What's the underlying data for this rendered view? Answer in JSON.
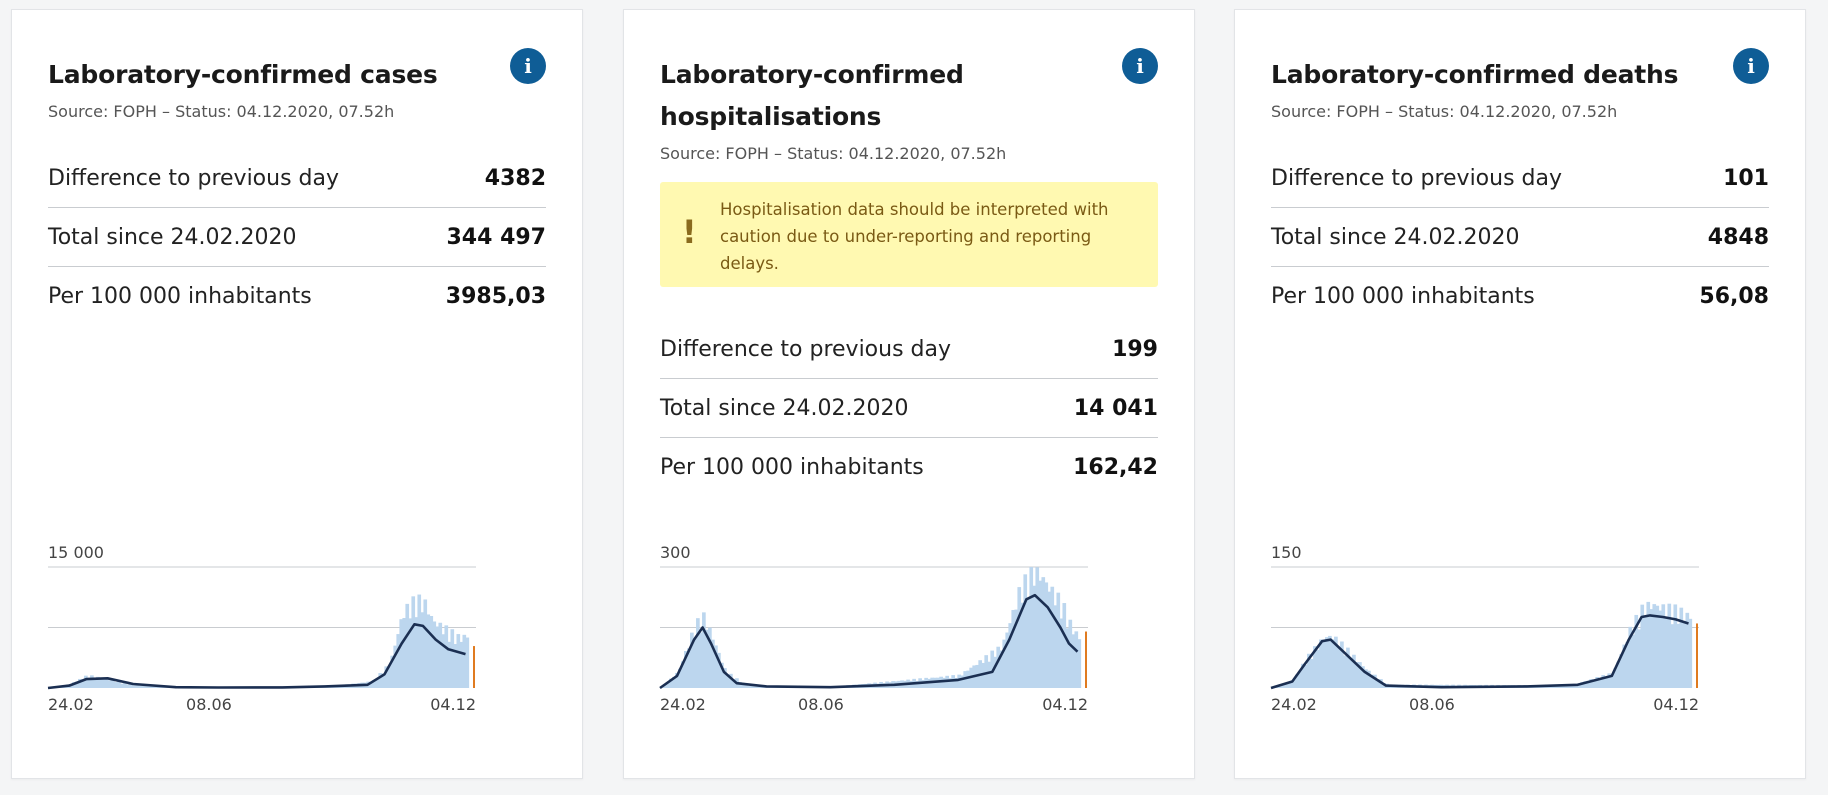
{
  "colors": {
    "info": "#0f5d96",
    "area": "#bcd6ee",
    "line": "#1b2f52",
    "recent": "#e07b20",
    "grid": "#c9ccd0",
    "warning_bg": "#fff9b1"
  },
  "cards": [
    {
      "title": "Laboratory-confirmed cases",
      "info_icon": "i",
      "source": "Source: FOPH – Status: 04.12.2020, 07.52h",
      "rows": [
        {
          "label": "Difference to previous day",
          "value": "4382"
        },
        {
          "label": "Total since 24.02.2020",
          "value": "344 497"
        },
        {
          "label": "Per 100 000 inhabitants",
          "value": "3985,03"
        }
      ]
    },
    {
      "title": "Laboratory-confirmed hospitalisations",
      "info_icon": "i",
      "source": "Source: FOPH – Status: 04.12.2020, 07.52h",
      "warning": {
        "icon": "!",
        "text": "Hospitalisation data should be interpreted with caution due to under-reporting and reporting delays."
      },
      "rows": [
        {
          "label": "Difference to previous day",
          "value": "199"
        },
        {
          "label": "Total since 24.02.2020",
          "value": "14 041"
        },
        {
          "label": "Per 100 000 inhabitants",
          "value": "162,42"
        }
      ]
    },
    {
      "title": "Laboratory-confirmed deaths",
      "info_icon": "i",
      "source": "Source: FOPH – Status: 04.12.2020, 07.52h",
      "rows": [
        {
          "label": "Difference to previous day",
          "value": "101"
        },
        {
          "label": "Total since 24.02.2020",
          "value": "4848"
        },
        {
          "label": "Per 100 000 inhabitants",
          "value": "56,08"
        }
      ]
    }
  ],
  "chart_data": [
    {
      "type": "area",
      "series": "daily cases with 7-day average",
      "ylim": [
        0,
        15000
      ],
      "y_tick_labels": [
        "15 000"
      ],
      "x_tick_labels": [
        "24.02",
        "08.06",
        "04.12"
      ],
      "x_range": [
        "24.02",
        "04.12"
      ],
      "grid": true,
      "avg_curve": [
        [
          0,
          0
        ],
        [
          5,
          300
        ],
        [
          9,
          1100
        ],
        [
          14,
          1200
        ],
        [
          20,
          500
        ],
        [
          30,
          100
        ],
        [
          40,
          60
        ],
        [
          55,
          70
        ],
        [
          65,
          200
        ],
        [
          75,
          400
        ],
        [
          79,
          1700
        ],
        [
          83,
          5500
        ],
        [
          86,
          7900
        ],
        [
          88,
          7700
        ],
        [
          91,
          6000
        ],
        [
          94,
          4800
        ],
        [
          98,
          4200
        ]
      ],
      "bars": [
        [
          0,
          0
        ],
        [
          5,
          500
        ],
        [
          9,
          1500
        ],
        [
          12,
          1200
        ],
        [
          20,
          300
        ],
        [
          30,
          100
        ],
        [
          55,
          150
        ],
        [
          68,
          300
        ],
        [
          76,
          800
        ],
        [
          80,
          3000
        ],
        [
          83,
          9000
        ],
        [
          86,
          10500
        ],
        [
          88,
          10200
        ],
        [
          90,
          8000
        ],
        [
          93,
          7000
        ],
        [
          96,
          6000
        ],
        [
          98,
          6200
        ]
      ],
      "recent_bar_value": 5200
    },
    {
      "type": "area",
      "series": "daily hospitalisations with 7-day average",
      "ylim": [
        0,
        300
      ],
      "y_tick_labels": [
        "300"
      ],
      "x_tick_labels": [
        "24.02",
        "08.06",
        "04.12"
      ],
      "x_range": [
        "24.02",
        "04.12"
      ],
      "grid": true,
      "avg_curve": [
        [
          0,
          0
        ],
        [
          4,
          30
        ],
        [
          8,
          120
        ],
        [
          10,
          150
        ],
        [
          12,
          110
        ],
        [
          15,
          40
        ],
        [
          18,
          12
        ],
        [
          25,
          4
        ],
        [
          40,
          2
        ],
        [
          55,
          8
        ],
        [
          70,
          20
        ],
        [
          78,
          40
        ],
        [
          82,
          120
        ],
        [
          86,
          220
        ],
        [
          88,
          230
        ],
        [
          91,
          200
        ],
        [
          94,
          150
        ],
        [
          96,
          110
        ],
        [
          98,
          90
        ]
      ],
      "bars": [
        [
          0,
          0
        ],
        [
          4,
          40
        ],
        [
          8,
          150
        ],
        [
          10,
          170
        ],
        [
          12,
          120
        ],
        [
          15,
          40
        ],
        [
          20,
          5
        ],
        [
          40,
          3
        ],
        [
          70,
          30
        ],
        [
          80,
          100
        ],
        [
          84,
          230
        ],
        [
          87,
          280
        ],
        [
          89,
          270
        ],
        [
          91,
          240
        ],
        [
          94,
          200
        ],
        [
          96,
          150
        ],
        [
          98,
          120
        ]
      ],
      "recent_bar_value": 140
    },
    {
      "type": "area",
      "series": "daily deaths with 7-day average",
      "ylim": [
        0,
        150
      ],
      "y_tick_labels": [
        "150"
      ],
      "x_tick_labels": [
        "24.02",
        "08.06",
        "04.12"
      ],
      "x_range": [
        "24.02",
        "04.12"
      ],
      "grid": true,
      "avg_curve": [
        [
          0,
          0
        ],
        [
          5,
          8
        ],
        [
          8,
          30
        ],
        [
          12,
          58
        ],
        [
          14,
          60
        ],
        [
          17,
          45
        ],
        [
          22,
          20
        ],
        [
          27,
          3
        ],
        [
          40,
          1
        ],
        [
          60,
          2
        ],
        [
          72,
          4
        ],
        [
          80,
          15
        ],
        [
          84,
          60
        ],
        [
          87,
          88
        ],
        [
          89,
          90
        ],
        [
          92,
          88
        ],
        [
          95,
          85
        ],
        [
          98,
          80
        ]
      ],
      "bars": [
        [
          0,
          0
        ],
        [
          5,
          10
        ],
        [
          8,
          35
        ],
        [
          12,
          60
        ],
        [
          14,
          62
        ],
        [
          17,
          48
        ],
        [
          22,
          22
        ],
        [
          27,
          4
        ],
        [
          70,
          3
        ],
        [
          80,
          18
        ],
        [
          84,
          70
        ],
        [
          87,
          95
        ],
        [
          89,
          100
        ],
        [
          92,
          95
        ],
        [
          95,
          92
        ],
        [
          98,
          85
        ]
      ],
      "recent_bar_value": 80
    }
  ]
}
